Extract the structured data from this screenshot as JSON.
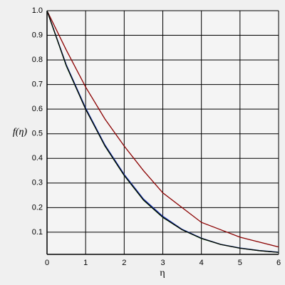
{
  "chart_data": {
    "type": "line",
    "x_label": "η",
    "y_label": "f(η)",
    "x": [
      0,
      0.5,
      1,
      1.5,
      2,
      2.5,
      3,
      3.5,
      4,
      4.5,
      5,
      5.5,
      6
    ],
    "series": [
      {
        "color": "#8b0000",
        "values": [
          1.0,
          0.84,
          0.69,
          0.56,
          0.45,
          0.35,
          0.26,
          0.2,
          0.14,
          0.11,
          0.08,
          0.06,
          0.04
        ]
      },
      {
        "color": "#1f3fbf",
        "values": [
          1.0,
          0.78,
          0.605,
          0.455,
          0.335,
          0.235,
          0.165,
          0.112,
          0.076,
          0.051,
          0.036,
          0.026,
          0.019
        ]
      },
      {
        "color": "#2e8b2e",
        "values": [
          1.0,
          0.775,
          0.6,
          0.45,
          0.33,
          0.23,
          0.16,
          0.11,
          0.074,
          0.05,
          0.035,
          0.025,
          0.018
        ]
      },
      {
        "color": "#000000",
        "values": [
          1.0,
          0.777,
          0.6,
          0.451,
          0.331,
          0.231,
          0.161,
          0.11,
          0.075,
          0.05,
          0.035,
          0.025,
          0.018
        ]
      }
    ],
    "xlim": [
      0,
      6
    ],
    "ylim": [
      0.01,
      1.0
    ],
    "xticks": [
      0,
      1,
      2,
      3,
      4,
      5,
      6
    ],
    "yticks": [
      0.1,
      0.2,
      0.3,
      0.4,
      0.5,
      0.6,
      0.7,
      0.8,
      0.9,
      {
        "value": 1.0,
        "label": "1.0"
      }
    ],
    "grid": true
  }
}
